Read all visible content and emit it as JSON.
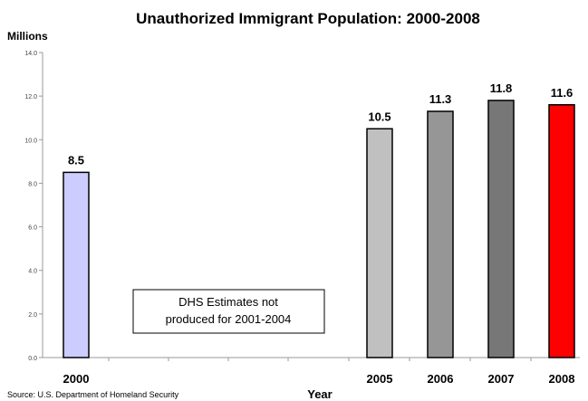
{
  "chart_data": {
    "type": "bar",
    "title": "Unauthorized Immigrant Population: 2000-2008",
    "ylabel": "Millions",
    "xlabel": "Year",
    "categories": [
      "2000",
      "2005",
      "2006",
      "2007",
      "2008"
    ],
    "values": [
      8.5,
      10.5,
      11.3,
      11.8,
      11.6
    ],
    "data_labels": [
      "8.5",
      "10.5",
      "11.3",
      "11.8",
      "11.6"
    ],
    "bar_colors": [
      "#ccccff",
      "#c0c0c0",
      "#969696",
      "#777777",
      "#ff0000"
    ],
    "ylim": [
      0,
      14
    ],
    "y_ticks": [
      "0.0",
      "2.0",
      "4.0",
      "6.0",
      "8.0",
      "10.0",
      "12.0",
      "14.0"
    ],
    "grid": false,
    "annotation": "DHS Estimates not produced for 2001-2004",
    "annotation_lines": [
      "DHS Estimates not",
      "produced for 2001-2004"
    ],
    "source": "Source:  U.S. Department of Homeland Security"
  }
}
